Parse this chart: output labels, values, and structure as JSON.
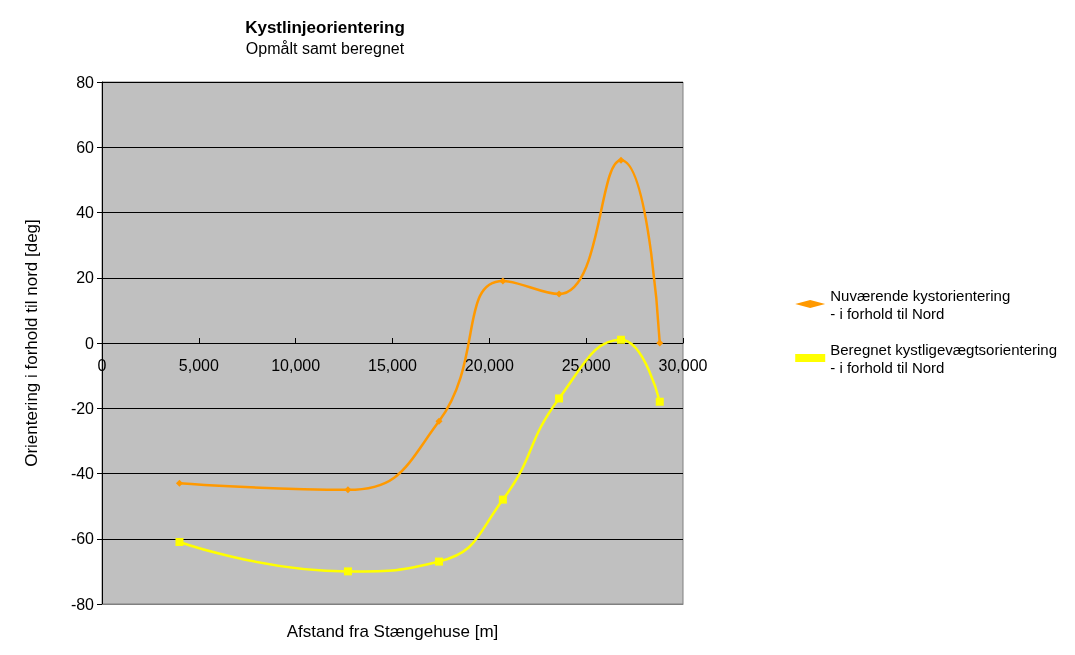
{
  "chart_data": {
    "type": "line",
    "title": "Kystlinjeorientering",
    "subtitle": "Opmålt samt beregnet",
    "xlabel": "Afstand fra Stængehuse [m]",
    "ylabel": "Orientering i forhold til nord [deg]",
    "series": [
      {
        "name": "Nuværende kystorientering\n- i forhold til Nord",
        "color": "#ff9900",
        "marker": "diamond",
        "x": [
          4000,
          12700,
          17400,
          20700,
          23600,
          26800,
          28800
        ],
        "values": [
          -43,
          -45,
          -24,
          19,
          15,
          56,
          0
        ]
      },
      {
        "name": "Beregnet kystligevægtsorientering\n- i forhold til Nord",
        "color": "#ffff00",
        "marker": "square",
        "x": [
          4000,
          12700,
          17400,
          20700,
          23600,
          26800,
          28800
        ],
        "values": [
          -61,
          -70,
          -67,
          -48,
          -17,
          1,
          -18
        ]
      }
    ],
    "xlim": [
      0,
      30000
    ],
    "xticks": [
      0,
      {
        "value": 5000,
        "label": "5,000"
      },
      {
        "value": 10000,
        "label": "10,000"
      },
      {
        "value": 15000,
        "label": "15,000"
      },
      {
        "value": 20000,
        "label": "20,000"
      },
      {
        "value": 25000,
        "label": "25,000"
      },
      {
        "value": 30000,
        "label": "30,000"
      }
    ],
    "ylim": [
      -80,
      80
    ],
    "yticks": [
      -80,
      -60,
      -40,
      -20,
      0,
      20,
      40,
      60,
      80
    ],
    "grid": "y",
    "legend": "right"
  }
}
